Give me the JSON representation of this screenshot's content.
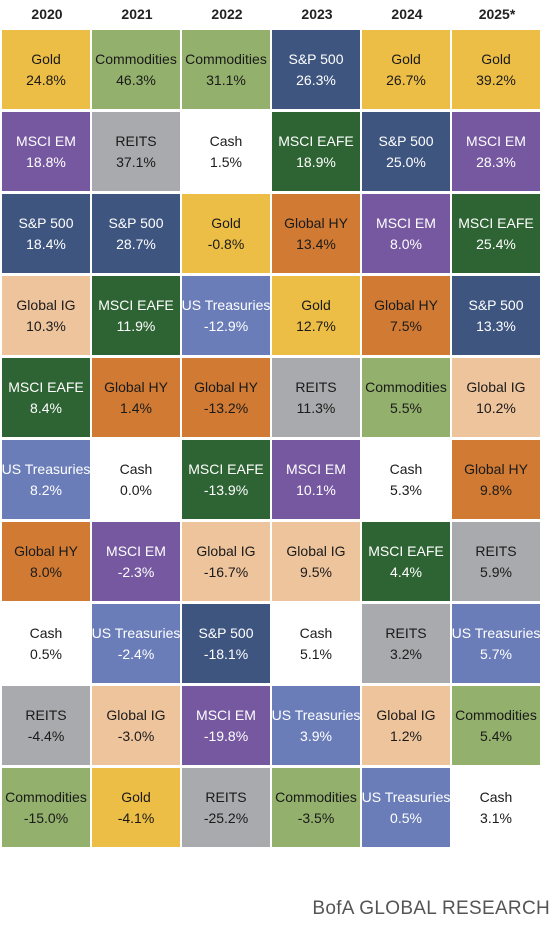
{
  "chart_data": {
    "type": "table",
    "years": [
      "2020",
      "2021",
      "2022",
      "2023",
      "2024",
      "2025*"
    ],
    "columns": [
      [
        {
          "asset": "Gold",
          "value": "24.8%"
        },
        {
          "asset": "MSCI EM",
          "value": "18.8%"
        },
        {
          "asset": "S&P 500",
          "value": "18.4%"
        },
        {
          "asset": "Global IG",
          "value": "10.3%"
        },
        {
          "asset": "MSCI EAFE",
          "value": "8.4%"
        },
        {
          "asset": "US Treasuries",
          "value": "8.2%"
        },
        {
          "asset": "Global HY",
          "value": "8.0%"
        },
        {
          "asset": "Cash",
          "value": "0.5%"
        },
        {
          "asset": "REITS",
          "value": "-4.4%"
        },
        {
          "asset": "Commodities",
          "value": "-15.0%"
        }
      ],
      [
        {
          "asset": "Commodities",
          "value": "46.3%"
        },
        {
          "asset": "REITS",
          "value": "37.1%"
        },
        {
          "asset": "S&P 500",
          "value": "28.7%"
        },
        {
          "asset": "MSCI EAFE",
          "value": "11.9%"
        },
        {
          "asset": "Global HY",
          "value": "1.4%"
        },
        {
          "asset": "Cash",
          "value": "0.0%"
        },
        {
          "asset": "MSCI EM",
          "value": "-2.3%"
        },
        {
          "asset": "US Treasuries",
          "value": "-2.4%"
        },
        {
          "asset": "Global IG",
          "value": "-3.0%"
        },
        {
          "asset": "Gold",
          "value": "-4.1%"
        }
      ],
      [
        {
          "asset": "Commodities",
          "value": "31.1%"
        },
        {
          "asset": "Cash",
          "value": "1.5%"
        },
        {
          "asset": "Gold",
          "value": "-0.8%"
        },
        {
          "asset": "US Treasuries",
          "value": "-12.9%"
        },
        {
          "asset": "Global HY",
          "value": "-13.2%"
        },
        {
          "asset": "MSCI EAFE",
          "value": "-13.9%"
        },
        {
          "asset": "Global IG",
          "value": "-16.7%"
        },
        {
          "asset": "S&P 500",
          "value": "-18.1%"
        },
        {
          "asset": "MSCI EM",
          "value": "-19.8%"
        },
        {
          "asset": "REITS",
          "value": "-25.2%"
        }
      ],
      [
        {
          "asset": "S&P 500",
          "value": "26.3%"
        },
        {
          "asset": "MSCI EAFE",
          "value": "18.9%"
        },
        {
          "asset": "Global HY",
          "value": "13.4%"
        },
        {
          "asset": "Gold",
          "value": "12.7%"
        },
        {
          "asset": "REITS",
          "value": "11.3%"
        },
        {
          "asset": "MSCI EM",
          "value": "10.1%"
        },
        {
          "asset": "Global IG",
          "value": "9.5%"
        },
        {
          "asset": "Cash",
          "value": "5.1%"
        },
        {
          "asset": "US Treasuries",
          "value": "3.9%"
        },
        {
          "asset": "Commodities",
          "value": "-3.5%"
        }
      ],
      [
        {
          "asset": "Gold",
          "value": "26.7%"
        },
        {
          "asset": "S&P 500",
          "value": "25.0%"
        },
        {
          "asset": "MSCI EM",
          "value": "8.0%"
        },
        {
          "asset": "Global HY",
          "value": "7.5%"
        },
        {
          "asset": "Commodities",
          "value": "5.5%"
        },
        {
          "asset": "Cash",
          "value": "5.3%"
        },
        {
          "asset": "MSCI EAFE",
          "value": "4.4%"
        },
        {
          "asset": "REITS",
          "value": "3.2%"
        },
        {
          "asset": "Global IG",
          "value": "1.2%"
        },
        {
          "asset": "US Treasuries",
          "value": "0.5%"
        }
      ],
      [
        {
          "asset": "Gold",
          "value": "39.2%"
        },
        {
          "asset": "MSCI EM",
          "value": "28.3%"
        },
        {
          "asset": "MSCI EAFE",
          "value": "25.4%"
        },
        {
          "asset": "S&P 500",
          "value": "13.3%"
        },
        {
          "asset": "Global IG",
          "value": "10.2%"
        },
        {
          "asset": "Global HY",
          "value": "9.8%"
        },
        {
          "asset": "REITS",
          "value": "5.9%"
        },
        {
          "asset": "US Treasuries",
          "value": "5.7%"
        },
        {
          "asset": "Commodities",
          "value": "5.4%"
        },
        {
          "asset": "Cash",
          "value": "3.1%"
        }
      ]
    ]
  },
  "asset_colors": {
    "Gold": {
      "bg": "#EDBE45",
      "fg": "#1a1a1a"
    },
    "Commodities": {
      "bg": "#93B06C",
      "fg": "#1a1a1a"
    },
    "S&P 500": {
      "bg": "#3E5580",
      "fg": "#ffffff"
    },
    "MSCI EM": {
      "bg": "#7658A0",
      "fg": "#ffffff"
    },
    "REITS": {
      "bg": "#A8AAAD",
      "fg": "#1a1a1a"
    },
    "Cash": {
      "bg": "#ffffff",
      "fg": "#1a1a1a"
    },
    "MSCI EAFE": {
      "bg": "#2E6433",
      "fg": "#ffffff"
    },
    "Global HY": {
      "bg": "#D07A33",
      "fg": "#1a1a1a"
    },
    "Global IG": {
      "bg": "#EEC49D",
      "fg": "#1a1a1a"
    },
    "US Treasuries": {
      "bg": "#6A7DB8",
      "fg": "#ffffff"
    }
  },
  "footer": {
    "source": "BofA GLOBAL RESEARCH"
  }
}
